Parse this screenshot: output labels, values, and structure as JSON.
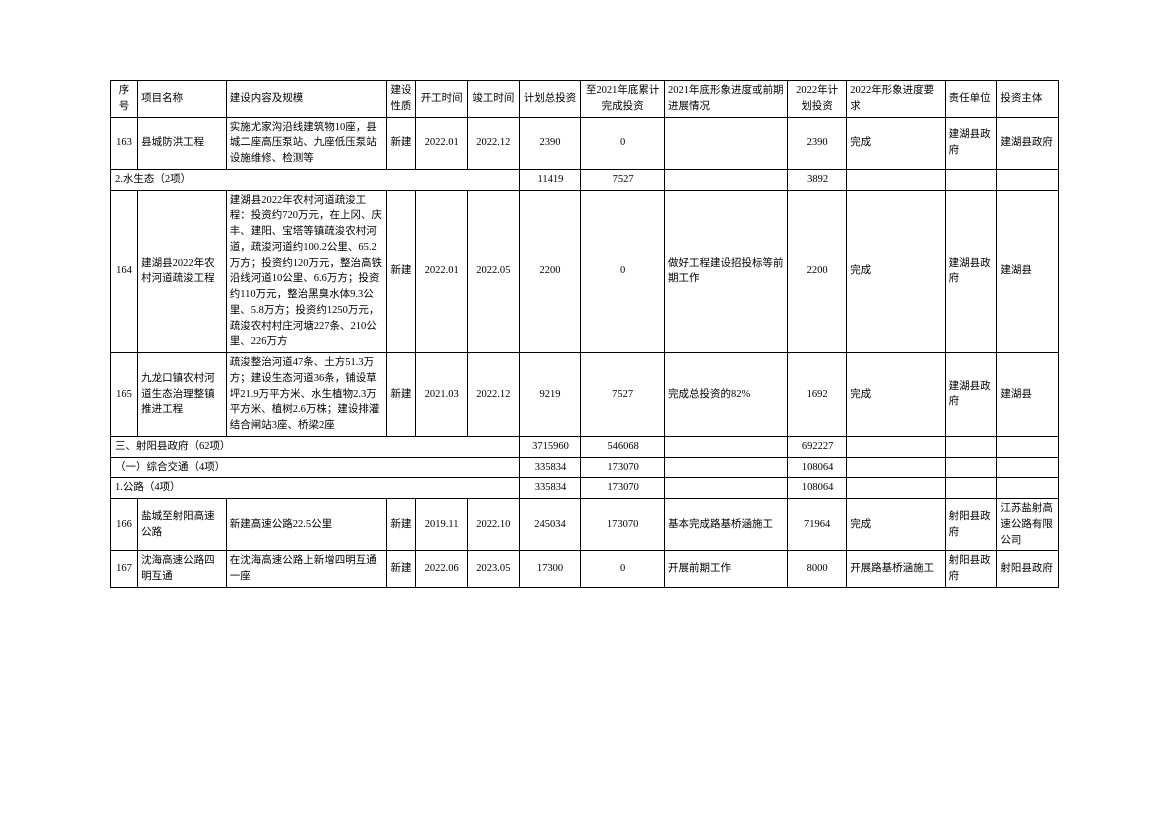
{
  "headers": {
    "seq": "序号",
    "name": "项目名称",
    "content": "建设内容及规模",
    "nature": "建设性质",
    "start": "开工时间",
    "end": "竣工时间",
    "planTotal": "计划总投资",
    "doneBy2021": "至2021年底累计完成投资",
    "progress2021": "2021年底形象进度或前期进展情况",
    "plan2022": "2022年计划投资",
    "req2022": "2022年形象进度要求",
    "responsible": "责任单位",
    "investor": "投资主体"
  },
  "rows": [
    {
      "type": "data",
      "seq": "163",
      "name": "县城防洪工程",
      "content": "实施尤家沟沿线建筑物10座，县城二座高压泵站、九座低压泵站设施维修、检测等",
      "nature": "新建",
      "start": "2022.01",
      "end": "2022.12",
      "planTotal": "2390",
      "doneBy2021": "0",
      "progress2021": "",
      "plan2022": "2390",
      "req2022": "完成",
      "responsible": "建湖县政府",
      "investor": "建湖县政府"
    },
    {
      "type": "section",
      "label": "2.水生态（2项）",
      "planTotal": "11419",
      "doneBy2021": "7527",
      "plan2022": "3892"
    },
    {
      "type": "data",
      "seq": "164",
      "name": "建湖县2022年农村河道疏浚工程",
      "content": "建湖县2022年农村河道疏浚工程：投资约720万元，在上冈、庆丰、建阳、宝塔等镇疏浚农村河道，疏浚河道约100.2公里、65.2万方；投资约120万元，整治高铁沿线河道10公里、6.6万方；投资约110万元，整治黑臭水体9.3公里、5.8万方；投资约1250万元，疏浚农村村庄河塘227条、210公里、226万方",
      "nature": "新建",
      "start": "2022.01",
      "end": "2022.05",
      "planTotal": "2200",
      "doneBy2021": "0",
      "progress2021": "做好工程建设招投标等前期工作",
      "plan2022": "2200",
      "req2022": "完成",
      "responsible": "建湖县政府",
      "investor": "建湖县"
    },
    {
      "type": "data",
      "seq": "165",
      "name": "九龙口镇农村河道生态治理整镇推进工程",
      "content": "疏浚整治河道47条、土方51.3万方；建设生态河道36条，铺设草坪21.9万平方米、水生植物2.3万平方米、植树2.6万株；建设排灌结合闸站3座、桥梁2座",
      "nature": "新建",
      "start": "2021.03",
      "end": "2022.12",
      "planTotal": "9219",
      "doneBy2021": "7527",
      "progress2021": "完成总投资的82%",
      "plan2022": "1692",
      "req2022": "完成",
      "responsible": "建湖县政府",
      "investor": "建湖县"
    },
    {
      "type": "section",
      "label": "三、射阳县政府（62项）",
      "planTotal": "3715960",
      "doneBy2021": "546068",
      "plan2022": "692227"
    },
    {
      "type": "section",
      "label": "（一）综合交通（4项）",
      "planTotal": "335834",
      "doneBy2021": "173070",
      "plan2022": "108064"
    },
    {
      "type": "section",
      "label": "1.公路（4项）",
      "planTotal": "335834",
      "doneBy2021": "173070",
      "plan2022": "108064"
    },
    {
      "type": "data",
      "seq": "166",
      "name": "盐城至射阳高速公路",
      "content": "新建高速公路22.5公里",
      "nature": "新建",
      "start": "2019.11",
      "end": "2022.10",
      "planTotal": "245034",
      "doneBy2021": "173070",
      "progress2021": "基本完成路基桥涵施工",
      "plan2022": "71964",
      "req2022": "完成",
      "responsible": "射阳县政府",
      "investor": "江苏盐射高速公路有限公司"
    },
    {
      "type": "data",
      "seq": "167",
      "name": "沈海高速公路四明互通",
      "content": "在沈海高速公路上新增四明互通一座",
      "nature": "新建",
      "start": "2022.06",
      "end": "2023.05",
      "planTotal": "17300",
      "doneBy2021": "0",
      "progress2021": "开展前期工作",
      "plan2022": "8000",
      "req2022": "开展路基桥涵施工",
      "responsible": "射阳县政府",
      "investor": "射阳县政府"
    }
  ]
}
